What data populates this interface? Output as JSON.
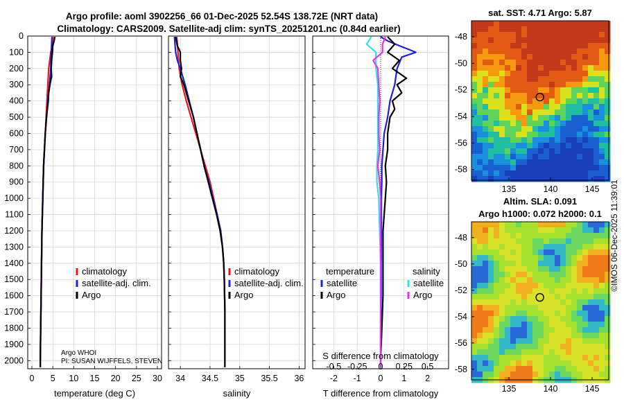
{
  "title": {
    "line1": "Argo profile: aoml 3902256_66 01-Dec-2025 52.54S 138.72E (NRT data)",
    "line2": "Climatology: CARS2009. Satellite-adj clim: synTS_20251201.nc (0.84d earlier)"
  },
  "credit": "©IMOS 06-Dec-2025 11:39:01",
  "float_info": {
    "line1": "Argo WHOI",
    "line2": "PI: SUSAN WIJFFELS, STEVEN"
  },
  "depth_axis": {
    "ticks": [
      0,
      100,
      200,
      300,
      400,
      500,
      600,
      700,
      800,
      900,
      1000,
      1100,
      1200,
      1300,
      1400,
      1500,
      1600,
      1700,
      1800,
      1900,
      2000
    ],
    "lim": [
      0,
      2050
    ]
  },
  "colors": {
    "climatology": "#e8141e",
    "satellite": "#1f1fdc",
    "argo": "#000000",
    "sat_salinity": "#33e0e8",
    "argo_salinity": "#e633e6"
  },
  "chart_data": [
    {
      "type": "line",
      "name": "temperature-profile",
      "xlabel": "temperature (deg C)",
      "xlim": [
        -1,
        31
      ],
      "xticks": [
        0,
        5,
        10,
        15,
        20,
        25,
        30
      ],
      "legend": [
        "climatology",
        "satellite-adj. clim.",
        "Argo"
      ],
      "series": [
        {
          "name": "climatology",
          "color": "#e8141e",
          "depth": [
            5,
            50,
            100,
            200,
            300,
            400,
            500,
            600,
            700,
            800,
            900,
            1000,
            1200,
            1400,
            1600,
            1800,
            2000,
            2040
          ],
          "values": [
            5.2,
            5.0,
            4.5,
            4.0,
            3.8,
            3.6,
            3.4,
            3.2,
            3.0,
            2.8,
            2.7,
            2.6,
            2.4,
            2.3,
            2.2,
            2.1,
            2.0,
            2.0
          ]
        },
        {
          "name": "satellite-adj. clim.",
          "color": "#1f1fdc",
          "depth": [
            5,
            50,
            100,
            200,
            300,
            400,
            500,
            600,
            700,
            800,
            900,
            1000,
            1200,
            1400,
            1600,
            1800,
            2000,
            2040
          ],
          "values": [
            4.8,
            4.7,
            4.6,
            4.5,
            4.2,
            3.8,
            3.5,
            3.2,
            3.0,
            2.8,
            2.7,
            2.6,
            2.4,
            2.3,
            2.2,
            2.1,
            2.0,
            2.0
          ]
        },
        {
          "name": "Argo",
          "color": "#000000",
          "depth": [
            5,
            30,
            60,
            100,
            150,
            200,
            250,
            300,
            350,
            400,
            500,
            600,
            700,
            800,
            900,
            1000,
            1200,
            1400,
            1600,
            1800,
            2000,
            2040
          ],
          "values": [
            5.5,
            5.3,
            5.0,
            4.9,
            4.7,
            4.6,
            4.7,
            4.3,
            4.0,
            3.9,
            3.5,
            3.2,
            3.0,
            2.8,
            2.7,
            2.6,
            2.4,
            2.3,
            2.2,
            2.1,
            2.0,
            2.0
          ]
        }
      ]
    },
    {
      "type": "line",
      "name": "salinity-profile",
      "xlabel": "salinity",
      "xlim": [
        33.8,
        36.1
      ],
      "xticks": [
        34,
        34.5,
        35,
        35.5,
        36
      ],
      "tick_labels": [
        "34",
        "34.5",
        "35",
        "35.5",
        "36"
      ],
      "legend": [
        "climatology",
        "satellite-adj. clim.",
        "Argo"
      ],
      "series": [
        {
          "name": "climatology",
          "color": "#e8141e",
          "depth": [
            5,
            100,
            200,
            300,
            400,
            500,
            600,
            700,
            800,
            900,
            1000,
            1100,
            1200,
            1300,
            1400,
            1500,
            1700,
            1900,
            2040
          ],
          "values": [
            33.94,
            33.96,
            33.98,
            34.03,
            34.1,
            34.18,
            34.26,
            34.34,
            34.42,
            34.5,
            34.56,
            34.62,
            34.67,
            34.71,
            34.73,
            34.74,
            34.75,
            34.75,
            34.75
          ]
        },
        {
          "name": "satellite-adj. clim.",
          "color": "#1f1fdc",
          "depth": [
            5,
            100,
            150,
            200,
            300,
            400,
            500,
            600,
            700,
            800,
            900,
            1000,
            1100,
            1200,
            1300,
            1400,
            1500,
            1700,
            1900,
            2040
          ],
          "values": [
            33.9,
            33.92,
            33.95,
            34.0,
            34.08,
            34.15,
            34.22,
            34.28,
            34.34,
            34.4,
            34.48,
            34.55,
            34.62,
            34.68,
            34.71,
            34.73,
            34.74,
            34.75,
            34.75,
            34.75
          ]
        },
        {
          "name": "Argo",
          "color": "#000000",
          "depth": [
            5,
            60,
            100,
            150,
            200,
            250,
            300,
            350,
            400,
            500,
            600,
            700,
            800,
            900,
            1000,
            1100,
            1200,
            1300,
            1400,
            1500,
            1700,
            1900,
            2040
          ],
          "values": [
            33.92,
            33.95,
            34.0,
            34.0,
            34.02,
            34.0,
            34.06,
            34.1,
            34.14,
            34.22,
            34.28,
            34.34,
            34.4,
            34.47,
            34.54,
            34.61,
            34.67,
            34.71,
            34.73,
            34.74,
            34.75,
            34.75,
            34.75
          ]
        }
      ]
    },
    {
      "type": "line",
      "name": "difference-profile",
      "xlabel": "T difference from climatology",
      "xlim": [
        -2.9,
        2.9
      ],
      "xticks": [
        -2,
        -1,
        0,
        1,
        2
      ],
      "top_axis": {
        "label": "S difference from climatology",
        "ticks": [
          -0.5,
          -0.25,
          0,
          0.25,
          0.5
        ],
        "tick_labels": [
          "-0.5",
          "-0.25",
          "0",
          "0.25",
          "0.5"
        ],
        "lim": [
          -0.725,
          0.725
        ]
      },
      "legend_headers": [
        "temperature",
        "salinity"
      ],
      "legend_left": [
        "satellite",
        "Argo"
      ],
      "legend_right": [
        "satellite",
        "Argo"
      ],
      "series": [
        {
          "name": "temperature satellite",
          "color": "#1f1fdc",
          "axis": "T",
          "depth": [
            5,
            30,
            60,
            100,
            130,
            200,
            300,
            400,
            500,
            600,
            700,
            800,
            900,
            1000,
            1200,
            1400,
            1600,
            1800,
            2000,
            2040
          ],
          "values": [
            0.0,
            0.3,
            0.8,
            1.5,
            0.9,
            0.7,
            0.6,
            0.4,
            0.3,
            0.15,
            0.1,
            0.05,
            0.05,
            0.03,
            0.03,
            0.02,
            0.02,
            0.0,
            0.0,
            0.0
          ]
        },
        {
          "name": "temperature Argo",
          "color": "#000000",
          "axis": "T",
          "depth": [
            5,
            50,
            100,
            150,
            200,
            260,
            300,
            350,
            400,
            450,
            500,
            600,
            700,
            800,
            900,
            1000,
            1100,
            1200,
            1400,
            1600,
            1800,
            2000,
            2040
          ],
          "values": [
            0.3,
            0.6,
            0.3,
            0.8,
            0.5,
            1.1,
            0.7,
            0.9,
            0.5,
            0.6,
            0.4,
            0.3,
            0.3,
            0.2,
            0.25,
            0.2,
            0.15,
            0.1,
            0.1,
            0.1,
            0.05,
            0.0,
            0.0
          ]
        },
        {
          "name": "salinity satellite",
          "color": "#33e0e8",
          "axis": "S",
          "depth": [
            5,
            50,
            100,
            200,
            300,
            400,
            500,
            600,
            700,
            800,
            900,
            1000,
            1200,
            1400,
            1600,
            1800,
            2000,
            2040
          ],
          "values": [
            -0.1,
            -0.15,
            -0.05,
            -0.05,
            -0.03,
            -0.03,
            -0.03,
            -0.03,
            -0.03,
            -0.04,
            -0.04,
            -0.02,
            -0.01,
            0.0,
            0.0,
            0.0,
            0.0,
            0.0
          ]
        },
        {
          "name": "salinity Argo",
          "color": "#e633e6",
          "axis": "S",
          "depth": [
            5,
            50,
            100,
            150,
            200,
            300,
            400,
            500,
            600,
            700,
            800,
            900,
            1000,
            1200,
            1400,
            1600,
            1800,
            2000,
            2040
          ],
          "values": [
            0.05,
            0.02,
            0.02,
            -0.08,
            -0.03,
            -0.02,
            -0.01,
            -0.02,
            -0.02,
            -0.01,
            -0.03,
            -0.01,
            0.0,
            0.0,
            0.0,
            0.0,
            0.0,
            0.0,
            0.0
          ]
        }
      ]
    },
    {
      "type": "heatmap",
      "name": "sst-map",
      "title": "sat. SST: 4.71 Argo: 5.87",
      "xticks": [
        135,
        140,
        145
      ],
      "yticks": [
        -48,
        -50,
        -52,
        -54,
        -56,
        -58
      ],
      "ytick_labels": [
        "-48",
        "-50",
        "-52",
        "-54",
        "-56",
        "-58"
      ],
      "xlim": [
        130.5,
        147
      ],
      "ylim": [
        -58.8,
        -46.8
      ],
      "marker": {
        "lon": 138.72,
        "lat": -52.54
      }
    },
    {
      "type": "heatmap",
      "name": "sla-map",
      "title_line1": "Altim. SLA: 0.091",
      "title_line2": "Argo h1000: 0.072 h2000: 0.1",
      "xticks": [
        135,
        140,
        145
      ],
      "yticks": [
        -48,
        -50,
        -52,
        -54,
        -56,
        -58
      ],
      "ytick_labels": [
        "-48",
        "-50",
        "-52",
        "-54",
        "-56",
        "-58"
      ],
      "xlim": [
        130.5,
        147
      ],
      "ylim": [
        -58.8,
        -46.8
      ],
      "marker": {
        "lon": 138.72,
        "lat": -52.54
      }
    }
  ]
}
